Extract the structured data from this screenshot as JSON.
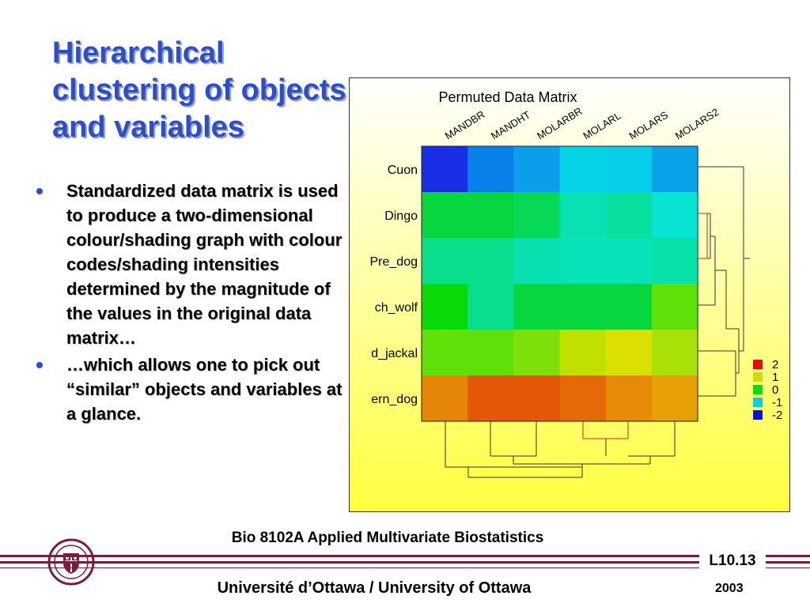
{
  "slide": {
    "title_lines": [
      "Hierarchical",
      "clustering of objects",
      "and variables"
    ],
    "bullets": [
      "Standardized data matrix is used to produce a two-dimensional colour/shading graph with colour codes/shading intensities determined by the magnitude of the values in the original data matrix…",
      "…which allows one to pick out “similar” objects and variables  at a glance."
    ],
    "footer_course": "Bio 8102A Applied Multivariate Biostatistics",
    "lecture_number": "L10.13",
    "footer_university": "Université d’Ottawa / University of Ottawa",
    "year": "2003"
  },
  "figure": {
    "title": "Permuted Data Matrix",
    "columns": [
      "MANDBR",
      "MANDHT",
      "MOLARBR",
      "MOLARL",
      "MOLARS",
      "MOLARS2"
    ],
    "rows": [
      "Cuon",
      "Dingo",
      "Pre_dog",
      "ch_wolf",
      "d_jackal",
      "ern_dog"
    ],
    "cell_colors": [
      [
        "#1a2ee6",
        "#0a80ea",
        "#0c9eea",
        "#06d2e6",
        "#06cde8",
        "#0aa2e8"
      ],
      [
        "#08d63e",
        "#08d63e",
        "#08d858",
        "#08e2b2",
        "#08e0a0",
        "#08e4d2"
      ],
      [
        "#08de8c",
        "#08de8c",
        "#08e0b0",
        "#08e2b8",
        "#08e2b8",
        "#08e2a8"
      ],
      [
        "#08da08",
        "#08de8c",
        "#08d63e",
        "#08d63e",
        "#08d63e",
        "#5ee008"
      ],
      [
        "#5ee008",
        "#5ee008",
        "#7ee008",
        "#c2e000",
        "#dce000",
        "#a8e008"
      ],
      [
        "#e68608",
        "#e45608",
        "#e45608",
        "#e46a08",
        "#e68a08",
        "#e6a006"
      ]
    ],
    "legend": [
      {
        "label": "2",
        "color": "#e80a0a"
      },
      {
        "label": "1",
        "color": "#ccdc10"
      },
      {
        "label": "0",
        "color": "#10dc10"
      },
      {
        "label": "-1",
        "color": "#10ccdc"
      },
      {
        "label": "-2",
        "color": "#1010dc"
      }
    ],
    "background_top": "#ffffff",
    "background_bottom": "#ffff40"
  },
  "colors": {
    "title": "#2e4ec8",
    "rule": "#7a1d3a",
    "dendrogram_highlight": "#c0282c"
  }
}
